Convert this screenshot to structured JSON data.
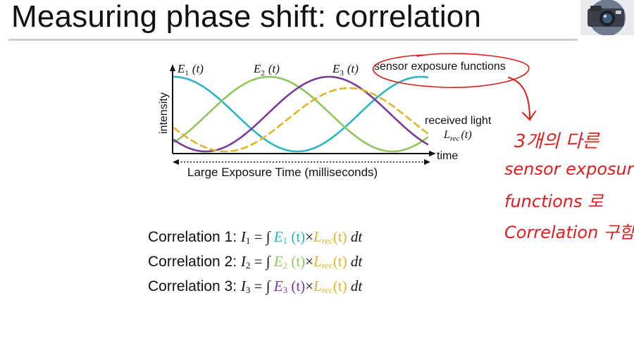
{
  "slide": {
    "title": "Measuring phase shift: correlation"
  },
  "figure": {
    "label_e1_base": "E",
    "label_e1_sub": "1",
    "label_e1_arg": "(t)",
    "label_e2_base": "E",
    "label_e2_sub": "2",
    "label_e2_arg": "(t)",
    "label_e3_base": "E",
    "label_e3_sub": "3",
    "label_e3_arg": "(t)",
    "sensor_label": "sensor exposure functions",
    "received_label": "received light",
    "lrec_base": "L",
    "lrec_sub": "rec",
    "lrec_arg": "(t)",
    "ylabel": "intensity",
    "xlabel": "time",
    "exposure_label": "Large Exposure Time (milliseconds)",
    "colors": {
      "e1": "#29b5c6",
      "e2": "#8fc55a",
      "e3": "#7a3a98",
      "lrec": "#e2b42a",
      "annotation": "#e11c1c"
    }
  },
  "formulas": [
    {
      "prefix": "Correlation 1:",
      "i_base": "I",
      "i_sub": "1",
      "eq": "=",
      "integral": "∫",
      "e_base": "E",
      "e_sub": "1",
      "e_arg": "(t)",
      "times": "×",
      "l_base": "L",
      "l_sub": "rec",
      "l_arg": "(t)",
      "dt": "dt"
    },
    {
      "prefix": "Correlation 2:",
      "i_base": "I",
      "i_sub": "2",
      "eq": "=",
      "integral": "∫",
      "e_base": "E",
      "e_sub": "2",
      "e_arg": "(t)",
      "times": "×",
      "l_base": "L",
      "l_sub": "rec",
      "l_arg": "(t)",
      "dt": "dt"
    },
    {
      "prefix": "Correlation 3:",
      "i_base": "I",
      "i_sub": "3",
      "eq": "=",
      "integral": "∫",
      "e_base": "E",
      "e_sub": "3",
      "e_arg": "(t)",
      "times": "×",
      "l_base": "L",
      "l_sub": "rec",
      "l_arg": "(t)",
      "dt": "dt"
    }
  ],
  "annotation": {
    "line1": "3개의 다른",
    "line2": "sensor exposure",
    "line3": "functions 로",
    "line4": "Correlation 구함"
  },
  "logo": {
    "icon": "camera-logo-icon"
  }
}
